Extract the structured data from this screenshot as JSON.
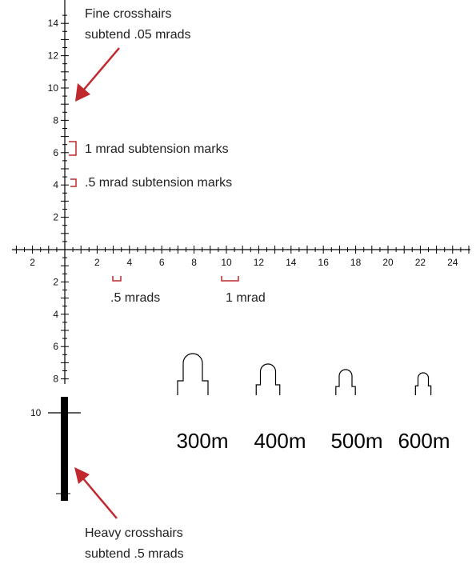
{
  "vertical_scale_up": [
    "14",
    "12",
    "10",
    "8",
    "6",
    "4",
    "2"
  ],
  "vertical_scale_down": [
    "2",
    "4",
    "6",
    "8"
  ],
  "horizontal_scale_right": [
    "2",
    "4",
    "6",
    "8",
    "10",
    "12",
    "14",
    "16",
    "18",
    "20",
    "22",
    "24"
  ],
  "horizontal_scale_left": [
    "2"
  ],
  "heavy_scale_label": "10",
  "annotations": {
    "fine_line1": "Fine crosshairs",
    "fine_line2": "subtend .05 mrads",
    "one_mrad_marks": "1 mrad subtension marks",
    "half_mrad_marks": ".5 mrad subtension marks",
    "half_mrads": ".5 mrads",
    "one_mrad": "1 mrad",
    "heavy_line1": "Heavy crosshairs",
    "heavy_line2": "subtend .5 mrads"
  },
  "targets": [
    "300m",
    "400m",
    "500m",
    "600m"
  ],
  "colors": {
    "line": "#000000",
    "accent": "#c0282d"
  }
}
